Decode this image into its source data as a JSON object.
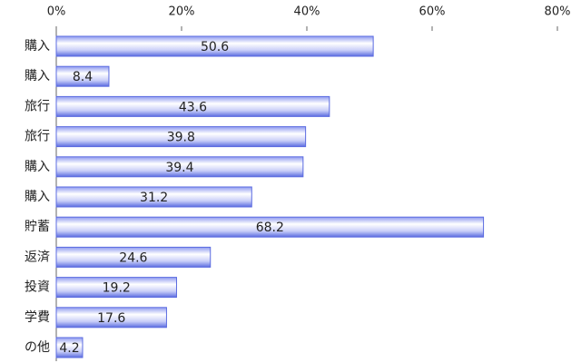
{
  "chart_data": {
    "type": "bar",
    "orientation": "horizontal",
    "categories": [
      "購入",
      "購入",
      "旅行",
      "旅行",
      "購入",
      "購入",
      "貯蓄",
      "返済",
      "投資",
      "学費",
      "の他"
    ],
    "values": [
      50.6,
      8.4,
      43.6,
      39.8,
      39.4,
      31.2,
      68.2,
      24.6,
      19.2,
      17.6,
      4.2
    ],
    "color": "#5b6be0",
    "xlim": [
      0,
      80
    ],
    "xticks": [
      {
        "value": 0,
        "label": "0%"
      },
      {
        "value": 20,
        "label": "20%"
      },
      {
        "value": 40,
        "label": "40%"
      },
      {
        "value": 60,
        "label": "60%"
      },
      {
        "value": 80,
        "label": "80%"
      }
    ]
  }
}
